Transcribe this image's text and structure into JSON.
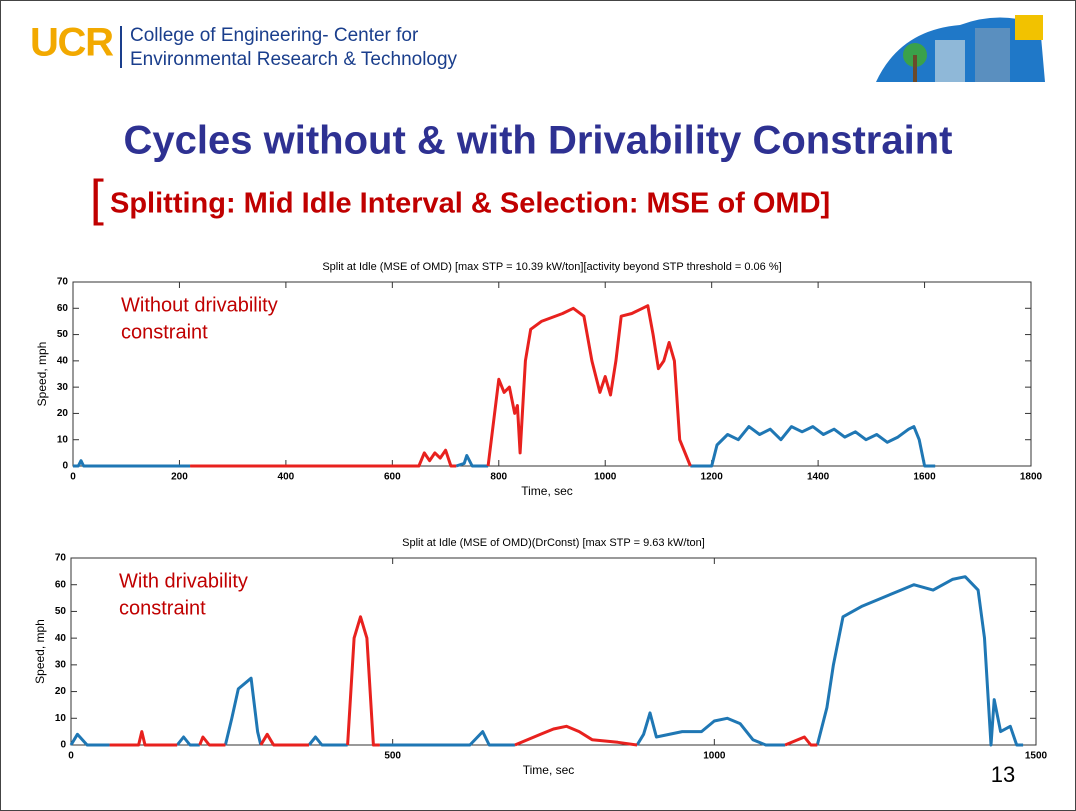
{
  "header": {
    "logo": "UCR",
    "org_lines": [
      "College of Engineering- Center for",
      "Environmental Research & Technology"
    ]
  },
  "title": "Cycles without & with Drivability Constraint",
  "subtitle_bracket": "[",
  "subtitle": "Splitting: Mid Idle Interval & Selection: MSE of OMD]",
  "page_number": "13",
  "chart_data": [
    {
      "type": "line",
      "title": "Split at Idle (MSE of OMD) [max STP = 10.39 kW/ton][activity beyond STP threshold = 0.06 %]",
      "x_label": "Time, sec",
      "y_label": "Speed, mph",
      "annotation": [
        "Without drivability",
        "constraint"
      ],
      "xlim": [
        0,
        1800
      ],
      "ylim": [
        0,
        70
      ],
      "xticks": [
        0,
        200,
        400,
        600,
        800,
        1000,
        1200,
        1400,
        1600,
        1800
      ],
      "yticks": [
        0,
        10,
        20,
        30,
        40,
        50,
        60,
        70
      ],
      "x": [
        0,
        10,
        15,
        20,
        220,
        650,
        660,
        670,
        680,
        690,
        700,
        710,
        720,
        735,
        740,
        750,
        780,
        800,
        810,
        820,
        830,
        835,
        840,
        850,
        860,
        880,
        920,
        940,
        960,
        975,
        990,
        1000,
        1010,
        1020,
        1030,
        1050,
        1070,
        1080,
        1090,
        1100,
        1110,
        1120,
        1130,
        1140,
        1160,
        1200,
        1210,
        1230,
        1250,
        1270,
        1290,
        1310,
        1330,
        1350,
        1370,
        1390,
        1410,
        1430,
        1450,
        1470,
        1490,
        1510,
        1530,
        1550,
        1570,
        1580,
        1590,
        1600,
        1620
      ],
      "series": [
        {
          "color": "#1f77b4",
          "values": [
            0,
            0,
            2,
            0,
            0,
            null,
            null,
            null,
            null,
            null,
            null,
            null,
            0,
            1,
            4,
            0,
            0,
            null,
            null,
            null,
            null,
            null,
            null,
            null,
            null,
            null,
            null,
            null,
            null,
            null,
            null,
            null,
            null,
            null,
            null,
            null,
            null,
            null,
            null,
            null,
            null,
            null,
            null,
            null,
            0,
            0,
            8,
            12,
            10,
            15,
            12,
            14,
            10,
            15,
            13,
            15,
            12,
            14,
            11,
            13,
            10,
            12,
            9,
            11,
            14,
            15,
            10,
            0,
            0
          ]
        },
        {
          "color": "#e8211e",
          "values": [
            null,
            null,
            null,
            null,
            0,
            0,
            5,
            2,
            5,
            3,
            6,
            0,
            0,
            null,
            null,
            null,
            0,
            33,
            28,
            30,
            20,
            23,
            5,
            40,
            52,
            55,
            58,
            60,
            57,
            40,
            28,
            34,
            27,
            40,
            57,
            58,
            60,
            61,
            50,
            37,
            40,
            47,
            40,
            10,
            0,
            null,
            null,
            null,
            null,
            null,
            null,
            null,
            null,
            null,
            null,
            null,
            null,
            null,
            null,
            null,
            null,
            null,
            null,
            null,
            null,
            null,
            null,
            null,
            null
          ]
        }
      ]
    },
    {
      "type": "line",
      "title": "Split at Idle (MSE of OMD)(DrConst) [max STP = 9.63 kW/ton]",
      "x_label": "Time, sec",
      "y_label": "Speed, mph",
      "annotation": [
        "With drivability",
        "constraint"
      ],
      "xlim": [
        0,
        1500
      ],
      "ylim": [
        0,
        70
      ],
      "xticks": [
        0,
        500,
        1000,
        1500
      ],
      "yticks": [
        0,
        10,
        20,
        30,
        40,
        50,
        60,
        70
      ],
      "x": [
        0,
        10,
        25,
        60,
        105,
        110,
        115,
        165,
        175,
        185,
        200,
        205,
        215,
        240,
        250,
        260,
        280,
        290,
        295,
        305,
        315,
        370,
        380,
        390,
        430,
        440,
        450,
        460,
        470,
        480,
        620,
        640,
        650,
        690,
        730,
        750,
        770,
        790,
        810,
        850,
        880,
        890,
        900,
        910,
        950,
        980,
        1000,
        1020,
        1040,
        1060,
        1080,
        1110,
        1140,
        1150,
        1160,
        1175,
        1185,
        1200,
        1230,
        1260,
        1290,
        1310,
        1340,
        1370,
        1390,
        1410,
        1420,
        1430,
        1435,
        1445,
        1460,
        1470,
        1480
      ],
      "series": [
        {
          "color": "#1f77b4",
          "values": [
            0,
            4,
            0,
            0,
            null,
            null,
            null,
            0,
            3,
            0,
            0,
            null,
            null,
            0,
            10,
            21,
            25,
            5,
            0,
            null,
            null,
            0,
            3,
            0,
            0,
            null,
            null,
            null,
            null,
            0,
            0,
            5,
            0,
            0,
            null,
            null,
            null,
            null,
            null,
            null,
            0,
            4,
            12,
            3,
            5,
            5,
            9,
            10,
            8,
            2,
            0,
            0,
            null,
            null,
            0,
            14,
            30,
            48,
            52,
            55,
            58,
            60,
            58,
            62,
            63,
            58,
            40,
            0,
            17,
            5,
            7,
            0,
            0
          ]
        },
        {
          "color": "#e8211e",
          "values": [
            null,
            null,
            null,
            0,
            0,
            5,
            0,
            0,
            null,
            null,
            0,
            3,
            0,
            0,
            null,
            null,
            null,
            null,
            0,
            4,
            0,
            0,
            null,
            null,
            0,
            40,
            48,
            40,
            0,
            0,
            null,
            null,
            null,
            0,
            4,
            6,
            7,
            5,
            2,
            1,
            0,
            null,
            null,
            null,
            null,
            null,
            null,
            null,
            null,
            null,
            null,
            0,
            3,
            0,
            0,
            null,
            null,
            null,
            null,
            null,
            null,
            null,
            null,
            null,
            null,
            null,
            null,
            null,
            null,
            null,
            null,
            null,
            null
          ]
        }
      ]
    }
  ]
}
